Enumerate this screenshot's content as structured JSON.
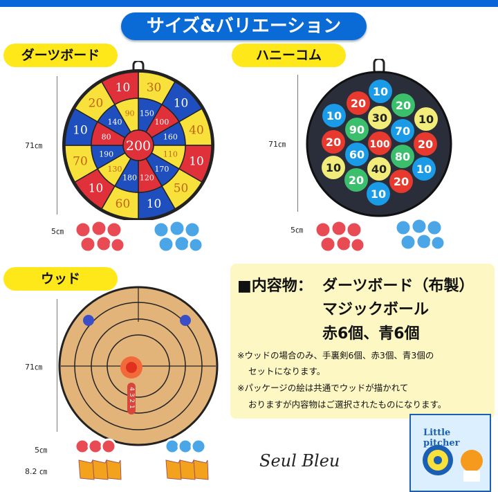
{
  "title": "サイズ&バリエーション",
  "sections": {
    "dartboard": {
      "label": "ダーツボード",
      "size": "71㎝",
      "ball_size": "5㎝",
      "outer": [
        30,
        10,
        40,
        10,
        50,
        10,
        60,
        10,
        70,
        10,
        20,
        10
      ],
      "outer_colors": [
        "#f7e13a",
        "#1f4fbf",
        "#f7e13a",
        "#e0313a",
        "#f7e13a",
        "#1f4fbf",
        "#f7e13a",
        "#e0313a",
        "#f7e13a",
        "#1f4fbf",
        "#f7e13a",
        "#e0313a"
      ],
      "inner": [
        150,
        100,
        160,
        110,
        170,
        120,
        180,
        130,
        190,
        80,
        140,
        90
      ],
      "inner_colors": [
        "#1f4fbf",
        "#e0313a",
        "#1f4fbf",
        "#f7e13a",
        "#1f4fbf",
        "#e0313a",
        "#1f4fbf",
        "#f7e13a",
        "#1f4fbf",
        "#e0313a",
        "#1f4fbf",
        "#f7e13a"
      ],
      "bull": 200
    },
    "honeycomb": {
      "label": "ハニーコム",
      "size": "71㎝",
      "ball_size": "5㎝",
      "circles": [
        {
          "v": 10,
          "c": "#1a9be8"
        },
        {
          "v": 20,
          "c": "#e8392e"
        },
        {
          "v": 20,
          "c": "#3cbf6c"
        },
        {
          "v": 10,
          "c": "#1a9be8"
        },
        {
          "v": 30,
          "c": "#f2ec7a"
        },
        {
          "v": 10,
          "c": "#f2ec7a"
        },
        {
          "v": 90,
          "c": "#3cbf6c"
        },
        {
          "v": 70,
          "c": "#1a9be8"
        },
        {
          "v": 20,
          "c": "#e8392e"
        },
        {
          "v": 100,
          "c": "#e8392e"
        },
        {
          "v": 20,
          "c": "#e8392e"
        },
        {
          "v": 60,
          "c": "#1a9be8"
        },
        {
          "v": 80,
          "c": "#3cbf6c"
        },
        {
          "v": 10,
          "c": "#f2ec7a"
        },
        {
          "v": 40,
          "c": "#f2ec7a"
        },
        {
          "v": 10,
          "c": "#1a9be8"
        },
        {
          "v": 20,
          "c": "#3cbf6c"
        },
        {
          "v": 20,
          "c": "#e8392e"
        },
        {
          "v": 10,
          "c": "#1a9be8"
        }
      ]
    },
    "wood": {
      "label": "ウッド",
      "size": "71㎝",
      "ball_size": "5㎝",
      "shuriken_size": "8.2 ㎝",
      "scores": "4 3 2 1"
    }
  },
  "contents": {
    "heading": "■内容物：",
    "line1": "ダーツボード（布製）",
    "line2": "マジックボール",
    "line3": "赤6個、青6個",
    "note1a": "※ウッドの場合のみ、手裏剣6個、赤3個、青3個の",
    "note1b": "セットになります。",
    "note2a": "※パッケージの絵は共通でウッドが描かれて",
    "note2b": "おりますが内容物はご選択されたものになります。"
  },
  "brand": "Seul Bleu",
  "package_label": "Little pitcher"
}
